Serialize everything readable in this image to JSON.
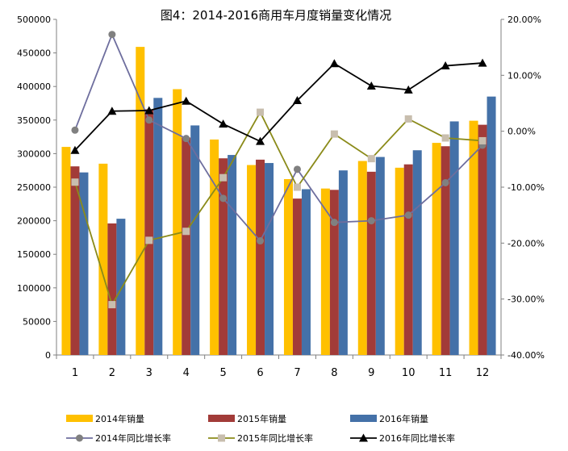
{
  "chart_data": {
    "type": "bar",
    "title": "图4：2014-2016商用车月度销量变化情况",
    "categories": [
      "1",
      "2",
      "3",
      "4",
      "5",
      "6",
      "7",
      "8",
      "9",
      "10",
      "11",
      "12"
    ],
    "y_left": {
      "min": 0,
      "max": 500000,
      "ticks": [
        "0",
        "50000",
        "100000",
        "150000",
        "200000",
        "250000",
        "300000",
        "350000",
        "400000",
        "450000",
        "500000"
      ]
    },
    "y_right": {
      "min": -40,
      "max": 20,
      "ticks": [
        "-40.00%",
        "-30.00%",
        "-20.00%",
        "-10.00%",
        "0.00%",
        "10.00%",
        "20.00%"
      ]
    },
    "bar_series": [
      {
        "name": "2014年销量",
        "color": "#FFC000",
        "values": [
          310000,
          285000,
          459000,
          396000,
          321000,
          283000,
          262000,
          248000,
          289000,
          279000,
          316000,
          349000
        ]
      },
      {
        "name": "2015年销量",
        "color": "#A23B38",
        "values": [
          281000,
          196000,
          366000,
          324000,
          293000,
          291000,
          233000,
          246000,
          273000,
          284000,
          311000,
          343000
        ]
      },
      {
        "name": "2016年销量",
        "color": "#4471A8",
        "values": [
          272000,
          203000,
          383000,
          342000,
          298000,
          286000,
          247000,
          275000,
          295000,
          305000,
          348000,
          385000
        ]
      }
    ],
    "line_series": [
      {
        "name": "2014年同比增长率",
        "color": "#6E6E9E",
        "marker": "circle",
        "marker_color": "#808080",
        "values": [
          0.2,
          17.3,
          2.0,
          -1.3,
          -12.0,
          -19.6,
          -6.8,
          -16.3,
          -16.0,
          -15.0,
          -9.2,
          -2.5
        ]
      },
      {
        "name": "2015年同比增长率",
        "color": "#8B8B1A",
        "marker": "square",
        "marker_color": "#C8BEAE",
        "values": [
          -9.1,
          -31.0,
          -19.5,
          -17.9,
          -8.3,
          3.4,
          -10.0,
          -0.5,
          -4.9,
          2.2,
          -1.2,
          -1.7
        ]
      },
      {
        "name": "2016年同比增长率",
        "color": "#000000",
        "marker": "triangle",
        "marker_color": "#000000",
        "values": [
          -3.4,
          3.6,
          3.7,
          5.4,
          1.3,
          -1.8,
          5.5,
          12.1,
          8.1,
          7.4,
          11.7,
          12.2
        ]
      }
    ],
    "grid": false,
    "legend_position": "bottom"
  }
}
